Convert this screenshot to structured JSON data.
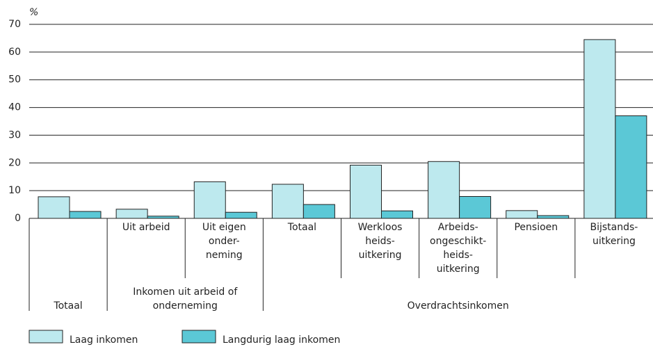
{
  "chart_data": {
    "type": "bar",
    "y_label": "%",
    "groups": [
      {
        "label": [
          "Totaal"
        ],
        "categories": [
          null
        ]
      },
      {
        "label": [
          "Inkomen uit arbeid of",
          "onderneming"
        ],
        "categories": [
          [
            "Uit arbeid"
          ],
          [
            "Uit eigen",
            "onder-",
            "neming"
          ]
        ]
      },
      {
        "label": [
          "Overdrachtsinkomen"
        ],
        "categories": [
          [
            "Totaal"
          ],
          [
            "Werkloos",
            "heids-",
            "uitkering"
          ],
          [
            "Arbeids-",
            "ongeschikt-",
            "heids-",
            "uitkering"
          ],
          [
            "Pensioen"
          ],
          [
            "Bijstands-",
            "uitkering"
          ]
        ]
      }
    ],
    "series": [
      {
        "name": "Laag inkomen",
        "color": "#bde9ee",
        "values": [
          7.8,
          3.3,
          13.2,
          12.3,
          19.2,
          20.5,
          2.8,
          64.5
        ]
      },
      {
        "name": "Langdurig laag inkomen",
        "color": "#5bc8d6",
        "values": [
          2.5,
          0.8,
          2.2,
          5.0,
          2.7,
          7.9,
          1.0,
          37.0
        ]
      }
    ],
    "ylim": [
      0,
      70
    ],
    "yticks": [
      0,
      10,
      20,
      30,
      40,
      50,
      60,
      70
    ],
    "grid": true,
    "legend": "bottom"
  }
}
